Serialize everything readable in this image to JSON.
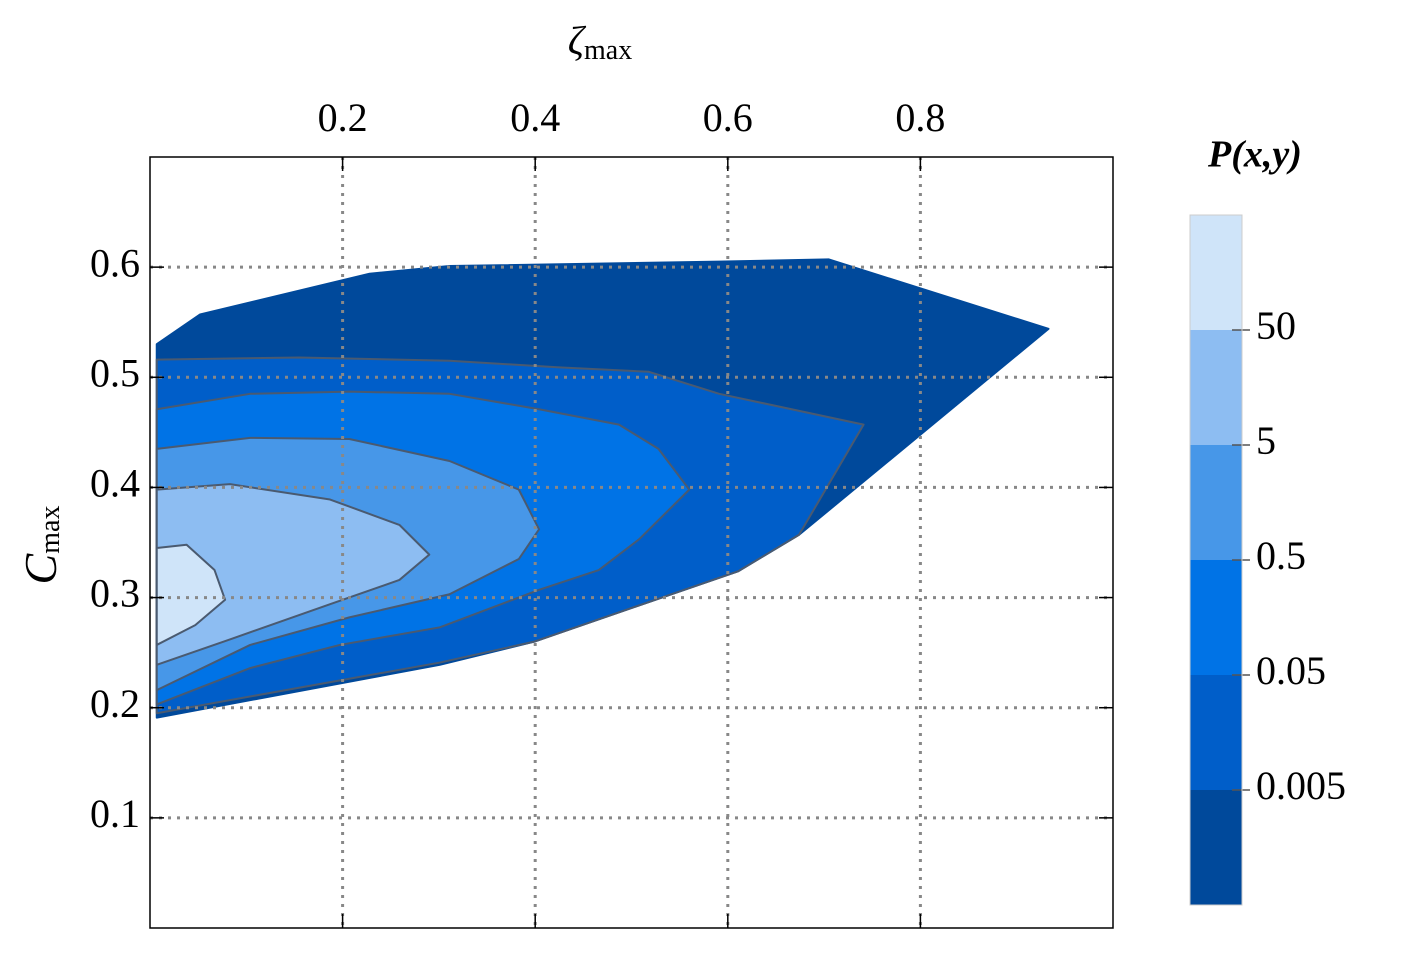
{
  "chart_data": {
    "type": "contour",
    "xlabel": {
      "symbol": "ζ",
      "subscript": "max"
    },
    "ylabel": {
      "symbol": "C",
      "subscript": "max"
    },
    "colorbar_label": "P(x,y)",
    "xlim": [
      0,
      1
    ],
    "xticks": [
      0.2,
      0.4,
      0.6,
      0.8
    ],
    "ylim": [
      0,
      0.7
    ],
    "yticks": [
      0.1,
      0.2,
      0.3,
      0.4,
      0.5,
      0.6
    ],
    "grid": true,
    "clim": [
      0.0005,
      500
    ],
    "clog": true,
    "cticks": [
      0.005,
      0.05,
      0.5,
      5,
      50
    ],
    "contours": [
      {
        "level": 0.0005,
        "color": "#00499b",
        "x": [
          0.007,
          0.007,
          0.301,
          0.399,
          0.611,
          0.674,
          0.933,
          0.705,
          0.591,
          0.311,
          0.228,
          0.052
        ],
        "y": [
          0.53,
          0.191,
          0.239,
          0.26,
          0.324,
          0.357,
          0.544,
          0.607,
          0.605,
          0.601,
          0.594,
          0.557
        ]
      },
      {
        "level": 0.005,
        "color": "#005ec9",
        "x": [
          0.007,
          0.155,
          0.311,
          0.425,
          0.518,
          0.591,
          0.741,
          0.674,
          0.611,
          0.399,
          0.301,
          0.007
        ],
        "y": [
          0.516,
          0.518,
          0.515,
          0.509,
          0.505,
          0.485,
          0.457,
          0.357,
          0.324,
          0.26,
          0.241,
          0.195
        ]
      },
      {
        "level": 0.05,
        "color": "#0073e6",
        "x": [
          0.007,
          0.104,
          0.207,
          0.311,
          0.404,
          0.487,
          0.528,
          0.56,
          0.508,
          0.466,
          0.404,
          0.301,
          0.197,
          0.104,
          0.007
        ],
        "y": [
          0.471,
          0.485,
          0.487,
          0.485,
          0.471,
          0.457,
          0.435,
          0.398,
          0.353,
          0.325,
          0.307,
          0.273,
          0.257,
          0.236,
          0.203
        ]
      },
      {
        "level": 0.5,
        "color": "#4797e8",
        "x": [
          0.007,
          0.104,
          0.207,
          0.311,
          0.383,
          0.404,
          0.383,
          0.311,
          0.207,
          0.104,
          0.007
        ],
        "y": [
          0.435,
          0.445,
          0.444,
          0.424,
          0.398,
          0.362,
          0.335,
          0.303,
          0.282,
          0.257,
          0.216
        ]
      },
      {
        "level": 5,
        "color": "#8dbdf2",
        "x": [
          0.007,
          0.083,
          0.187,
          0.259,
          0.29,
          0.259,
          0.187,
          0.083,
          0.007
        ],
        "y": [
          0.398,
          0.403,
          0.389,
          0.366,
          0.339,
          0.316,
          0.294,
          0.262,
          0.239
        ]
      },
      {
        "level": 50,
        "color": "#cfe4f9",
        "x": [
          0.007,
          0.038,
          0.067,
          0.078,
          0.047,
          0.007
        ],
        "y": [
          0.345,
          0.348,
          0.325,
          0.298,
          0.275,
          0.257
        ]
      }
    ]
  }
}
